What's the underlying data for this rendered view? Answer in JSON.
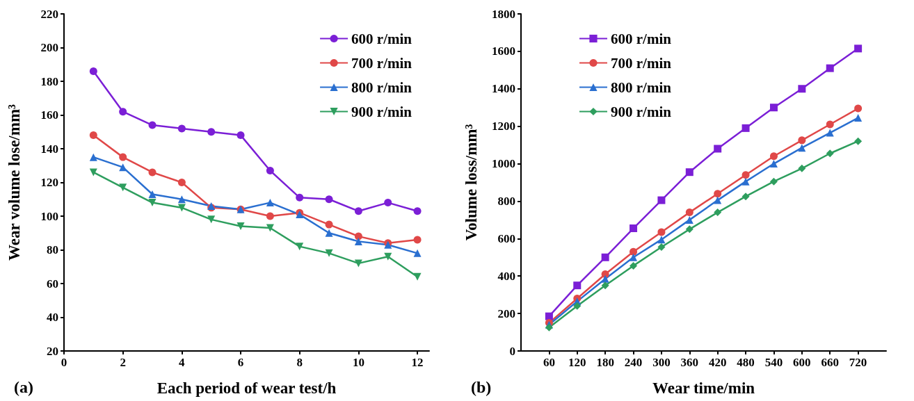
{
  "chart_data": [
    {
      "type": "line",
      "xlabel": "Each period of wear test/h",
      "ylabel": "Wear volume lose/mm³",
      "annotations": [
        "(a)"
      ],
      "x": [
        1,
        2,
        3,
        4,
        5,
        6,
        7,
        8,
        9,
        10,
        11,
        12
      ],
      "xlim": [
        0,
        12.4
      ],
      "xticks": [
        0,
        2,
        4,
        6,
        8,
        10,
        12
      ],
      "ylim": [
        20,
        220
      ],
      "yticks": [
        20,
        40,
        60,
        80,
        100,
        120,
        140,
        160,
        180,
        200,
        220
      ],
      "grid": false,
      "legend": "top right",
      "line_style": "solid",
      "series": [
        {
          "name": "600 r/min",
          "color": "#7b1fd6",
          "marker": "circle",
          "values": [
            186,
            162,
            154,
            152,
            150,
            148,
            127,
            111,
            110,
            103,
            108,
            103
          ]
        },
        {
          "name": "700 r/min",
          "color": "#e04848",
          "marker": "circle",
          "values": [
            148,
            135,
            126,
            120,
            105,
            104,
            100,
            102,
            95,
            88,
            84,
            86
          ]
        },
        {
          "name": "800 r/min",
          "color": "#2a6fd0",
          "marker": "triangle",
          "values": [
            135,
            129,
            113,
            110,
            106,
            104,
            108,
            101,
            90,
            85,
            83,
            78
          ]
        },
        {
          "name": "900 r/min",
          "color": "#2e9e5e",
          "marker": "triangle-down",
          "values": [
            126,
            117,
            108,
            105,
            98,
            94,
            93,
            82,
            78,
            72,
            76,
            64
          ]
        }
      ]
    },
    {
      "type": "line",
      "xlabel": "Wear time/min",
      "ylabel": "Volume loss/mm³",
      "annotations": [
        "(b)"
      ],
      "x": [
        60,
        120,
        180,
        240,
        300,
        360,
        420,
        480,
        540,
        600,
        660,
        720
      ],
      "xlim": [
        0,
        780
      ],
      "xticks": [
        60,
        120,
        180,
        240,
        300,
        360,
        420,
        480,
        540,
        600,
        660,
        720
      ],
      "ylim": [
        0,
        1800
      ],
      "yticks": [
        0,
        200,
        400,
        600,
        800,
        1000,
        1200,
        1400,
        1600,
        1800
      ],
      "grid": false,
      "legend": "top left",
      "line_style": "solid",
      "series": [
        {
          "name": "600 r/min",
          "color": "#7b1fd6",
          "marker": "square",
          "values": [
            185,
            350,
            500,
            655,
            805,
            955,
            1080,
            1190,
            1300,
            1400,
            1510,
            1615
          ]
        },
        {
          "name": "700 r/min",
          "color": "#e04848",
          "marker": "circle",
          "values": [
            150,
            280,
            410,
            530,
            635,
            740,
            840,
            940,
            1040,
            1125,
            1210,
            1295
          ]
        },
        {
          "name": "800 r/min",
          "color": "#2a6fd0",
          "marker": "triangle",
          "values": [
            140,
            265,
            385,
            500,
            595,
            700,
            805,
            905,
            1000,
            1085,
            1165,
            1245
          ]
        },
        {
          "name": "900 r/min",
          "color": "#2e9e5e",
          "marker": "diamond",
          "values": [
            125,
            240,
            350,
            455,
            555,
            650,
            740,
            825,
            905,
            975,
            1055,
            1120
          ]
        }
      ]
    }
  ]
}
